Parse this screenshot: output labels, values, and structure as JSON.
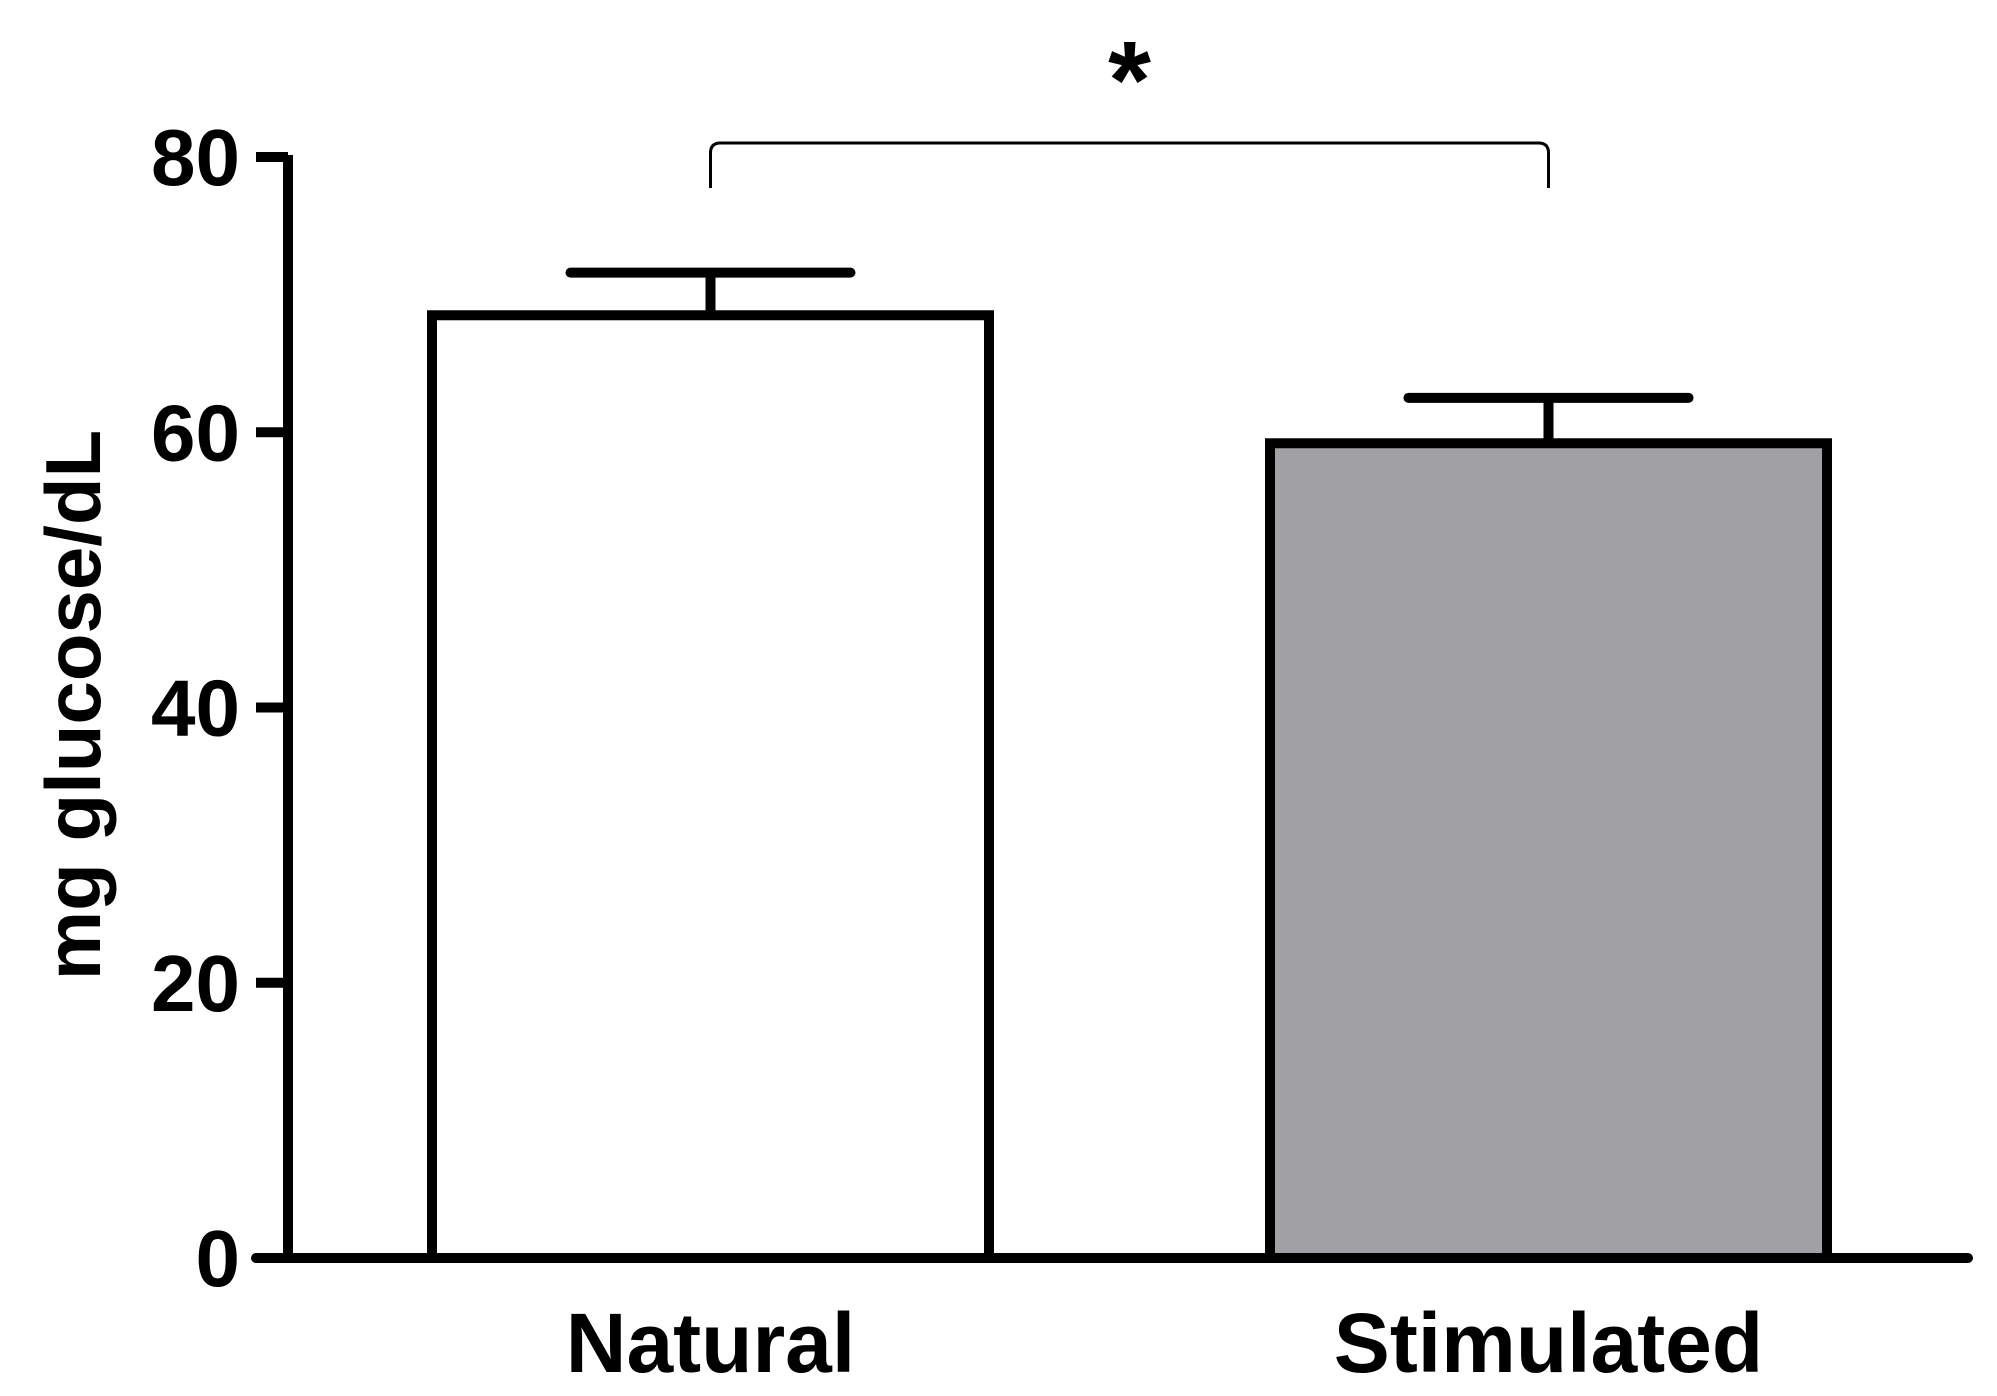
{
  "chart_data": {
    "type": "bar",
    "title": "",
    "xlabel": "",
    "ylabel": "mg glucose/dL",
    "categories": [
      "Natural",
      "Stimulated"
    ],
    "values": [
      68.5,
      59.2
    ],
    "errors": [
      3.1,
      3.3
    ],
    "bar_colors": [
      "#ffffff",
      "#a1a0a4"
    ],
    "ylim": [
      0,
      80
    ],
    "yticks": [
      "0",
      "20",
      "40",
      "60",
      "80"
    ],
    "grid": false,
    "legend": "none",
    "significance": {
      "between": [
        "Natural",
        "Stimulated"
      ],
      "label": "*"
    }
  }
}
